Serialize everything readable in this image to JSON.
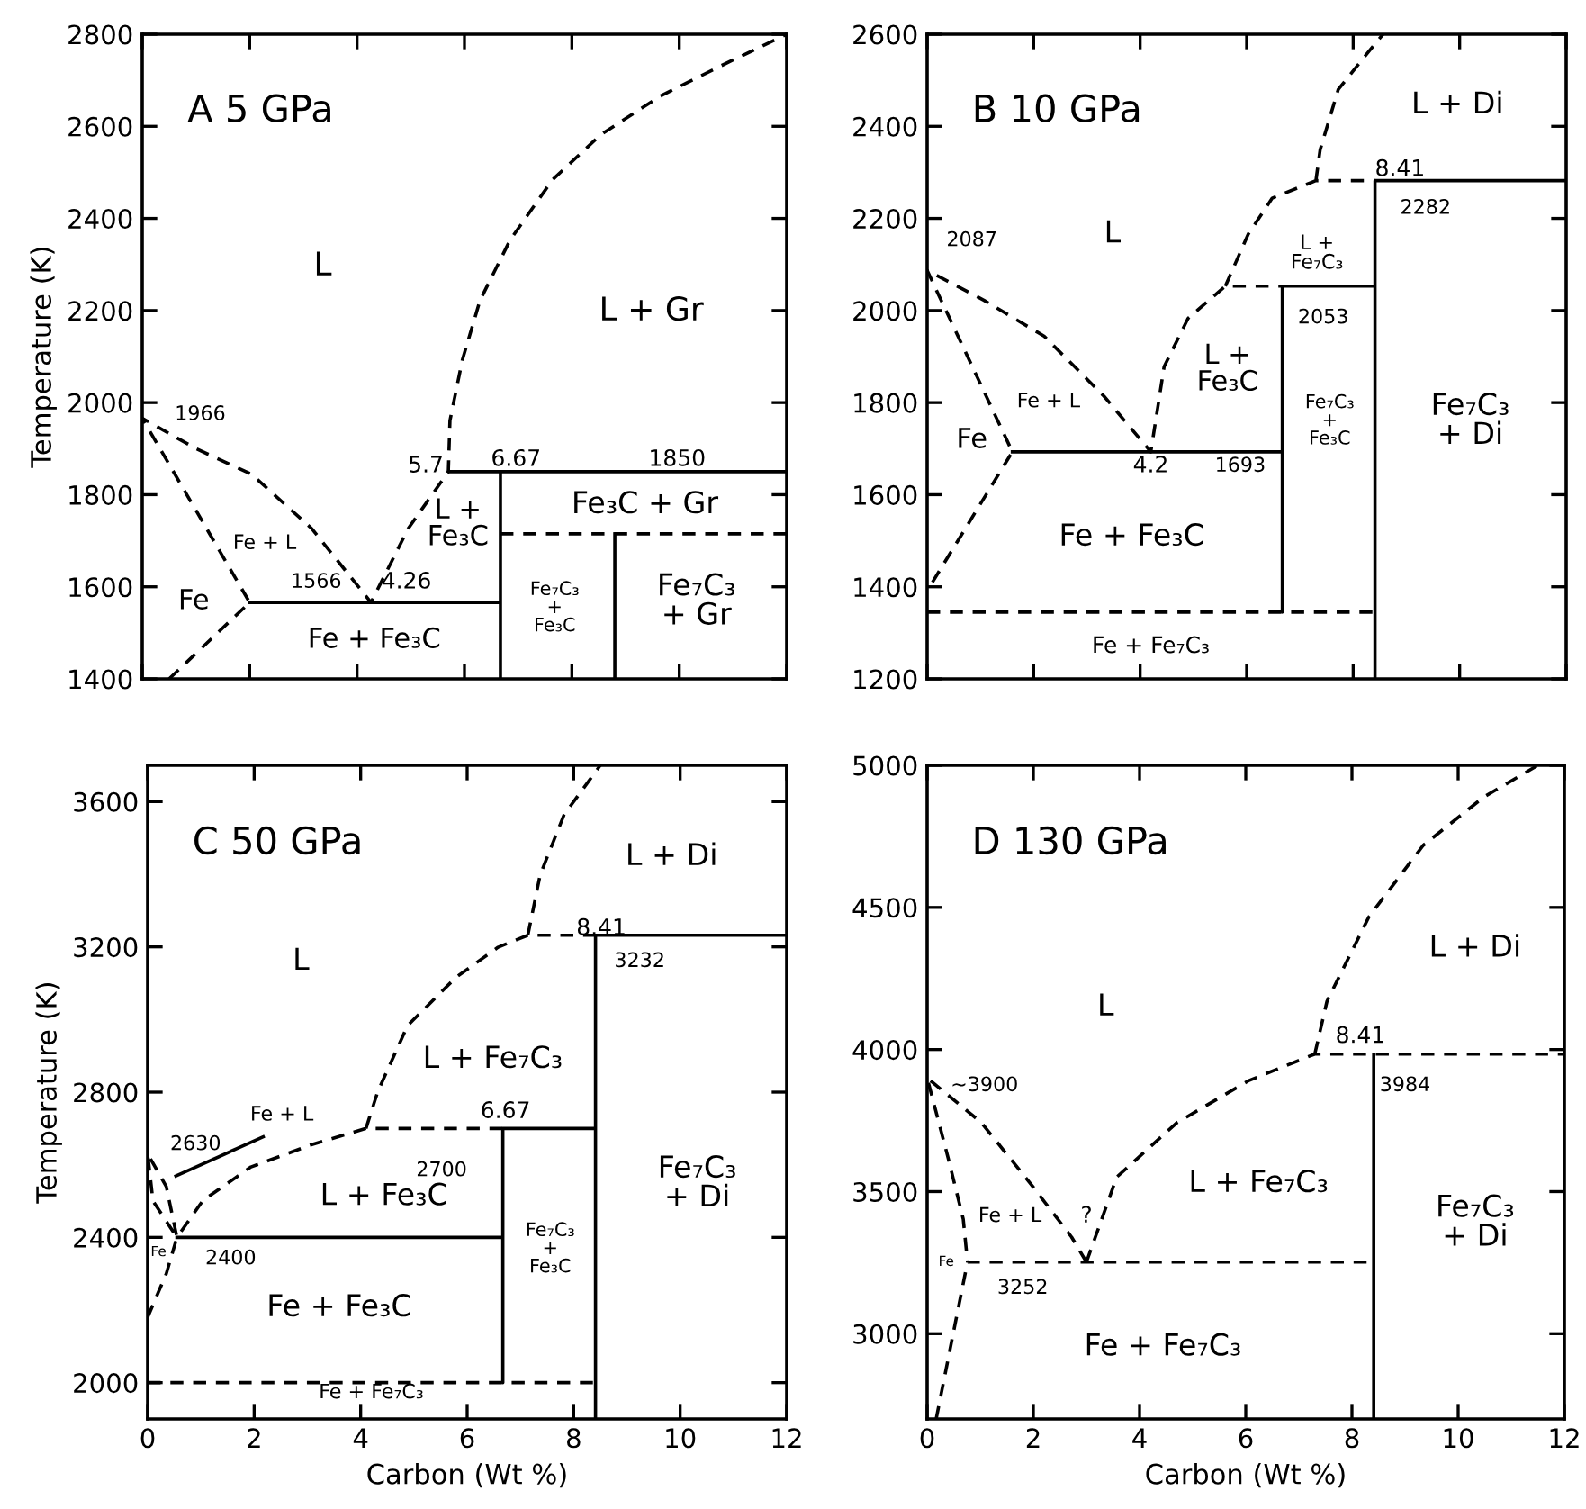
{
  "chart_data": [
    {
      "type": "line",
      "title": "A 5 GPa",
      "ylabel": "Temperature (K)",
      "xlim": [
        0,
        12
      ],
      "xticks": [
        0,
        2,
        4,
        6,
        8,
        10,
        12
      ],
      "ylim": [
        1400,
        2800
      ],
      "yticks": [
        1400,
        1600,
        1800,
        2000,
        2200,
        2400,
        2600,
        2800
      ],
      "tick_labels": "y",
      "grid": false,
      "series": [
        {
          "color": "#000000",
          "line_style": "dashed",
          "x": [
            0.5,
            2,
            0,
            1.0,
            2.04,
            3.16,
            4.26,
            4.95,
            5.7,
            5.73,
            5.96,
            6.29,
            6.85,
            7.64,
            8.53,
            9.65,
            10.77,
            12
          ],
          "values": [
            1400,
            1566,
            1966,
            1900,
            1844,
            1726,
            1566,
            1726,
            1850,
            1961,
            2092,
            2222,
            2353,
            2484,
            2581,
            2666,
            2731,
            2800
          ]
        },
        {
          "color": "#000000",
          "line_style": "solid",
          "x": [
            2,
            6.67,
            6.67,
            6.67,
            5.7,
            12
          ],
          "values": [
            1566,
            1566,
            1400,
            1850,
            1850,
            1850
          ]
        },
        {
          "color": "#000000",
          "line_style": "dashed",
          "x": [
            6.67,
            12
          ],
          "values": [
            1715,
            1715
          ]
        },
        {
          "color": "#000000",
          "line_style": "solid",
          "x": [
            8.8,
            8.8
          ],
          "values": [
            1400,
            1715
          ]
        }
      ],
      "annotations": [
        "L",
        "L + Gr",
        "1966",
        "5.7",
        "6.67",
        "1850",
        "L +\nFe₃C",
        "Fe₃C + Gr",
        "Fe + L",
        "1566",
        "4.26",
        "Fe",
        "Fe + Fe₃C",
        "Fe₇C₃\n+\nFe₃C",
        "Fe₇C₃\n+ Gr"
      ]
    },
    {
      "type": "line",
      "title": "B 10 GPa",
      "xlim": [
        0,
        12
      ],
      "xticks": [
        0,
        2,
        4,
        6,
        8,
        10,
        12
      ],
      "ylim": [
        1200,
        2600
      ],
      "yticks": [
        1200,
        1400,
        1600,
        1800,
        2000,
        2200,
        2400,
        2600
      ],
      "tick_labels": "y",
      "grid": false,
      "series": [
        {
          "color": "#000000",
          "line_style": "dashed",
          "x": [
            0.1,
            1.6,
            0,
            1.07,
            2.2,
            3.32,
            4.2,
            4.45,
            4.9,
            5.6,
            6.67,
            null,
            5.6,
            6.03,
            6.48,
            7.3,
            8.41,
            null,
            7.3,
            7.38,
            7.72,
            8.17,
            8.56
          ],
          "values": [
            1410,
            1693,
            2087,
            2022,
            1944,
            1814,
            1693,
            1878,
            1983,
            2053,
            2053,
            null,
            2053,
            2166,
            2244,
            2282,
            2282,
            null,
            2282,
            2349,
            2480,
            2545,
            2600
          ]
        },
        {
          "color": "#000000",
          "line_style": "solid",
          "x": [
            1.6,
            6.67,
            6.67,
            6.67,
            8.41,
            8.41,
            8.41,
            12
          ],
          "values": [
            1693,
            1693,
            1345,
            2053,
            2053,
            1200,
            2282,
            2282
          ]
        },
        {
          "color": "#000000",
          "line_style": "dashed",
          "x": [
            0,
            8.41
          ],
          "values": [
            1345,
            1345
          ]
        }
      ],
      "annotations": [
        "L + Di",
        "8.41",
        "2282",
        "2087",
        "L",
        "L +\nFe₇C₃",
        "2053",
        "L +\nFe₃C",
        "Fe + L",
        "Fe₇C₃\n+\nFe₃C",
        "Fe₇C₃\n+ Di",
        "Fe",
        "4.2",
        "1693",
        "Fe + Fe₃C",
        "Fe + Fe₇C₃"
      ]
    },
    {
      "type": "line",
      "title": "C 50 GPa",
      "xlabel": "Carbon (Wt %)",
      "ylabel": "Temperature (K)",
      "xlim": [
        0,
        12
      ],
      "xticks": [
        0,
        2,
        4,
        6,
        8,
        10,
        12
      ],
      "ylim": [
        1900,
        3700
      ],
      "yticks": [
        2000,
        2400,
        2800,
        3200,
        3600
      ],
      "grid": false,
      "series": [
        {
          "color": "#000000",
          "line_style": "dashed",
          "x": [
            0,
            0.35,
            0.55,
            0.1,
            0,
            0.35,
            0.55,
            1.04,
            1.94,
            3.07,
            4.1,
            6.67,
            null,
            4.1,
            4.32,
            4.88,
            5.79,
            6.58,
            7.14,
            8.41,
            null,
            7.14,
            7.37,
            7.82,
            8.5
          ],
          "values": [
            2180,
            2300,
            2400,
            2500,
            2630,
            2540,
            2400,
            2502,
            2594,
            2655,
            2700,
            2700,
            null,
            2700,
            2801,
            2983,
            3116,
            3199,
            3232,
            3232,
            null,
            3232,
            3398,
            3564,
            3700
          ]
        },
        {
          "color": "#000000",
          "line_style": "solid",
          "x": [
            0.55,
            6.67,
            6.67,
            6.67,
            8.41,
            8.41,
            8.41,
            12
          ],
          "values": [
            2400,
            2400,
            2000,
            2700,
            2700,
            1900,
            3232,
            3232
          ]
        },
        {
          "color": "#000000",
          "line_style": "dashed",
          "x": [
            0,
            8.41
          ],
          "values": [
            2000,
            2000
          ]
        },
        {
          "color": "#000000",
          "line_style": "solid",
          "x": [
            0.53,
            2.17
          ],
          "values": [
            2569,
            2677
          ]
        }
      ],
      "annotations": [
        "L + Di",
        "8.41",
        "3232",
        "L",
        "L + Fe₇C₃",
        "Fe + L",
        "2630",
        "2700",
        "6.67",
        "L + Fe₃C",
        "Fe₇C₃\n+ Di",
        "Fe₇C₃\n+\nFe₃C",
        "Fe",
        "2400",
        "Fe + Fe₃C",
        "Fe + Fe₇C₃"
      ]
    },
    {
      "type": "line",
      "title": "D 130 GPa",
      "xlabel": "Carbon (Wt %)",
      "xlim": [
        0,
        12
      ],
      "xticks": [
        0,
        2,
        4,
        6,
        8,
        10,
        12
      ],
      "ylim": [
        2700,
        5000
      ],
      "yticks": [
        3000,
        3500,
        4000,
        4500,
        5000
      ],
      "grid": false,
      "series": [
        {
          "color": "#000000",
          "line_style": "dashed",
          "x": [
            0.17,
            0.49,
            0.76,
            8.41,
            null,
            3.0,
            2.72,
            1.98,
            1.02,
            0,
            0.4,
            0.68,
            0.76,
            null,
            3.0,
            3.57,
            4.7,
            6.06,
            7.3,
            12,
            null,
            7.3,
            7.53,
            8.32,
            9.34,
            10.48,
            11.5
          ],
          "values": [
            2700,
            3000,
            3252,
            3252,
            null,
            3252,
            3340,
            3520,
            3743,
            3900,
            3615,
            3403,
            3252,
            null,
            3252,
            3551,
            3742,
            3891,
            3984,
            3984,
            null,
            3984,
            4170,
            4467,
            4718,
            4888,
            5000
          ]
        },
        {
          "color": "#000000",
          "line_style": "solid",
          "x": [
            8.41,
            8.41
          ],
          "values": [
            2700,
            3984
          ]
        }
      ],
      "annotations": [
        "L + Di",
        "L",
        "8.41",
        "3984",
        "~3900",
        "L + Fe₇C₃",
        "Fe₇C₃\n+ Di",
        "Fe + L",
        "?",
        "Fe",
        "3252",
        "Fe + Fe₇C₃"
      ]
    }
  ]
}
